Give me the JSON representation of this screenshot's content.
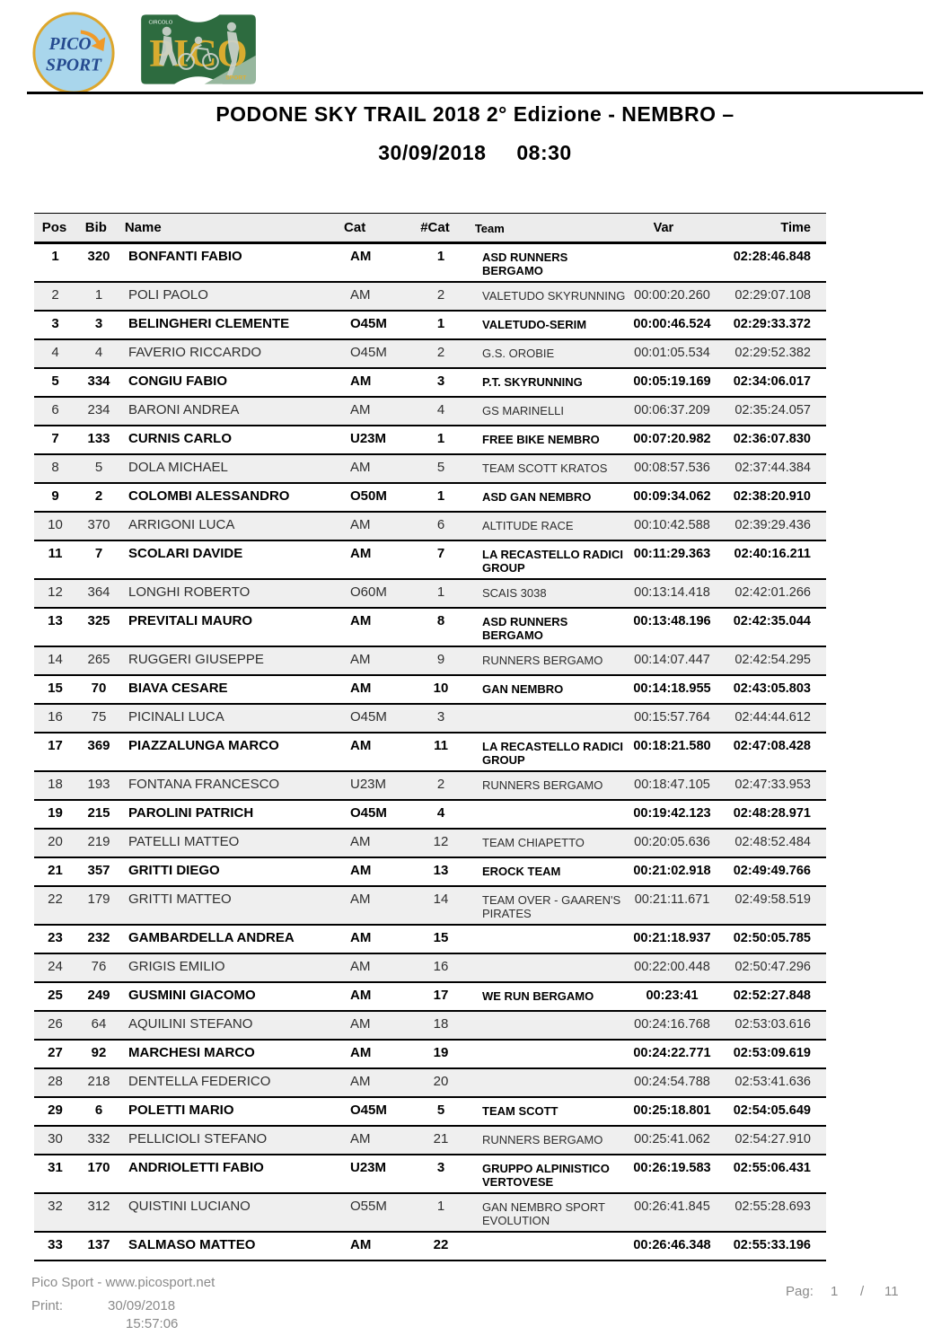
{
  "header": {
    "logo_picosport": {
      "line1": "PICO",
      "line2": "SPORT"
    },
    "logo_pico": {
      "big": "PICO",
      "small_top": "CIRCOLO",
      "small_bottom": "SPORT"
    },
    "title_line1": "PODONE SKY TRAIL 2018 2° Edizione - NEMBRO –",
    "title_date": "30/09/2018",
    "title_time": "08:30"
  },
  "table": {
    "columns": [
      "Pos",
      "Bib",
      "Name",
      "Cat",
      "#Cat",
      "Team",
      "Var",
      "Time"
    ],
    "col_keys": [
      "pos",
      "bib",
      "name",
      "cat",
      "ncat",
      "team",
      "var",
      "time"
    ],
    "rows": [
      {
        "pos": "1",
        "bib": "320",
        "name": "BONFANTI FABIO",
        "cat": "AM",
        "ncat": "1",
        "team": "ASD RUNNERS BERGAMO",
        "var": "",
        "time": "02:28:46.848"
      },
      {
        "pos": "2",
        "bib": "1",
        "name": "POLI PAOLO",
        "cat": "AM",
        "ncat": "2",
        "team": "VALETUDO SKYRUNNING",
        "var": "00:00:20.260",
        "time": "02:29:07.108"
      },
      {
        "pos": "3",
        "bib": "3",
        "name": "BELINGHERI CLEMENTE",
        "cat": "O45M",
        "ncat": "1",
        "team": "VALETUDO-SERIM",
        "var": "00:00:46.524",
        "time": "02:29:33.372"
      },
      {
        "pos": "4",
        "bib": "4",
        "name": "FAVERIO RICCARDO",
        "cat": "O45M",
        "ncat": "2",
        "team": "G.S. OROBIE",
        "var": "00:01:05.534",
        "time": "02:29:52.382"
      },
      {
        "pos": "5",
        "bib": "334",
        "name": "CONGIU FABIO",
        "cat": "AM",
        "ncat": "3",
        "team": "P.T. SKYRUNNING",
        "var": "00:05:19.169",
        "time": "02:34:06.017"
      },
      {
        "pos": "6",
        "bib": "234",
        "name": "BARONI ANDREA",
        "cat": "AM",
        "ncat": "4",
        "team": "GS MARINELLI",
        "var": "00:06:37.209",
        "time": "02:35:24.057"
      },
      {
        "pos": "7",
        "bib": "133",
        "name": "CURNIS CARLO",
        "cat": "U23M",
        "ncat": "1",
        "team": "FREE BIKE NEMBRO",
        "var": "00:07:20.982",
        "time": "02:36:07.830"
      },
      {
        "pos": "8",
        "bib": "5",
        "name": "DOLA MICHAEL",
        "cat": "AM",
        "ncat": "5",
        "team": "TEAM SCOTT KRATOS",
        "var": "00:08:57.536",
        "time": "02:37:44.384"
      },
      {
        "pos": "9",
        "bib": "2",
        "name": "COLOMBI ALESSANDRO",
        "cat": "O50M",
        "ncat": "1",
        "team": "ASD GAN NEMBRO",
        "var": "00:09:34.062",
        "time": "02:38:20.910"
      },
      {
        "pos": "10",
        "bib": "370",
        "name": "ARRIGONI LUCA",
        "cat": "AM",
        "ncat": "6",
        "team": "ALTITUDE RACE",
        "var": "00:10:42.588",
        "time": "02:39:29.436"
      },
      {
        "pos": "11",
        "bib": "7",
        "name": "SCOLARI DAVIDE",
        "cat": "AM",
        "ncat": "7",
        "team": "LA RECASTELLO RADICI GROUP",
        "var": "00:11:29.363",
        "time": "02:40:16.211"
      },
      {
        "pos": "12",
        "bib": "364",
        "name": "LONGHI ROBERTO",
        "cat": "O60M",
        "ncat": "1",
        "team": "SCAIS 3038",
        "var": "00:13:14.418",
        "time": "02:42:01.266"
      },
      {
        "pos": "13",
        "bib": "325",
        "name": "PREVITALI MAURO",
        "cat": "AM",
        "ncat": "8",
        "team": "ASD RUNNERS BERGAMO",
        "var": "00:13:48.196",
        "time": "02:42:35.044"
      },
      {
        "pos": "14",
        "bib": "265",
        "name": "RUGGERI GIUSEPPE",
        "cat": "AM",
        "ncat": "9",
        "team": "RUNNERS BERGAMO",
        "var": "00:14:07.447",
        "time": "02:42:54.295"
      },
      {
        "pos": "15",
        "bib": "70",
        "name": "BIAVA CESARE",
        "cat": "AM",
        "ncat": "10",
        "team": "GAN NEMBRO",
        "var": "00:14:18.955",
        "time": "02:43:05.803"
      },
      {
        "pos": "16",
        "bib": "75",
        "name": "PICINALI LUCA",
        "cat": "O45M",
        "ncat": "3",
        "team": "",
        "var": "00:15:57.764",
        "time": "02:44:44.612"
      },
      {
        "pos": "17",
        "bib": "369",
        "name": "PIAZZALUNGA MARCO",
        "cat": "AM",
        "ncat": "11",
        "team": "LA RECASTELLO RADICI GROUP",
        "var": "00:18:21.580",
        "time": "02:47:08.428"
      },
      {
        "pos": "18",
        "bib": "193",
        "name": "FONTANA FRANCESCO",
        "cat": "U23M",
        "ncat": "2",
        "team": "RUNNERS BERGAMO",
        "var": "00:18:47.105",
        "time": "02:47:33.953"
      },
      {
        "pos": "19",
        "bib": "215",
        "name": "PAROLINI PATRICH",
        "cat": "O45M",
        "ncat": "4",
        "team": "",
        "var": "00:19:42.123",
        "time": "02:48:28.971"
      },
      {
        "pos": "20",
        "bib": "219",
        "name": "PATELLI MATTEO",
        "cat": "AM",
        "ncat": "12",
        "team": "TEAM CHIAPETTO",
        "var": "00:20:05.636",
        "time": "02:48:52.484"
      },
      {
        "pos": "21",
        "bib": "357",
        "name": "GRITTI DIEGO",
        "cat": "AM",
        "ncat": "13",
        "team": "EROCK TEAM",
        "var": "00:21:02.918",
        "time": "02:49:49.766"
      },
      {
        "pos": "22",
        "bib": "179",
        "name": "GRITTI MATTEO",
        "cat": "AM",
        "ncat": "14",
        "team": "TEAM OVER - GAAREN'S PIRATES",
        "var": "00:21:11.671",
        "time": "02:49:58.519"
      },
      {
        "pos": "23",
        "bib": "232",
        "name": "GAMBARDELLA ANDREA",
        "cat": "AM",
        "ncat": "15",
        "team": "",
        "var": "00:21:18.937",
        "time": "02:50:05.785"
      },
      {
        "pos": "24",
        "bib": "76",
        "name": "GRIGIS EMILIO",
        "cat": "AM",
        "ncat": "16",
        "team": "",
        "var": "00:22:00.448",
        "time": "02:50:47.296"
      },
      {
        "pos": "25",
        "bib": "249",
        "name": "GUSMINI GIACOMO",
        "cat": "AM",
        "ncat": "17",
        "team": "WE RUN BERGAMO",
        "var": "00:23:41",
        "time": "02:52:27.848"
      },
      {
        "pos": "26",
        "bib": "64",
        "name": "AQUILINI STEFANO",
        "cat": "AM",
        "ncat": "18",
        "team": "",
        "var": "00:24:16.768",
        "time": "02:53:03.616"
      },
      {
        "pos": "27",
        "bib": "92",
        "name": "MARCHESI MARCO",
        "cat": "AM",
        "ncat": "19",
        "team": "",
        "var": "00:24:22.771",
        "time": "02:53:09.619"
      },
      {
        "pos": "28",
        "bib": "218",
        "name": "DENTELLA FEDERICO",
        "cat": "AM",
        "ncat": "20",
        "team": "",
        "var": "00:24:54.788",
        "time": "02:53:41.636"
      },
      {
        "pos": "29",
        "bib": "6",
        "name": "POLETTI MARIO",
        "cat": "O45M",
        "ncat": "5",
        "team": "TEAM SCOTT",
        "var": "00:25:18.801",
        "time": "02:54:05.649"
      },
      {
        "pos": "30",
        "bib": "332",
        "name": "PELLICIOLI STEFANO",
        "cat": "AM",
        "ncat": "21",
        "team": "RUNNERS BERGAMO",
        "var": "00:25:41.062",
        "time": "02:54:27.910"
      },
      {
        "pos": "31",
        "bib": "170",
        "name": "ANDRIOLETTI FABIO",
        "cat": "U23M",
        "ncat": "3",
        "team": "GRUPPO ALPINISTICO VERTOVESE",
        "var": "00:26:19.583",
        "time": "02:55:06.431"
      },
      {
        "pos": "32",
        "bib": "312",
        "name": "QUISTINI LUCIANO",
        "cat": "O55M",
        "ncat": "1",
        "team": "GAN NEMBRO SPORT EVOLUTION",
        "var": "00:26:41.845",
        "time": "02:55:28.693"
      },
      {
        "pos": "33",
        "bib": "137",
        "name": "SALMASO MATTEO",
        "cat": "AM",
        "ncat": "22",
        "team": "",
        "var": "00:26:46.348",
        "time": "02:55:33.196"
      }
    ]
  },
  "footer": {
    "company": "Pico Sport - www.picosport.net",
    "print_label": "Print:",
    "print_date": "30/09/2018",
    "print_time": "15:57:06",
    "page_label": "Pag:",
    "page_current": "1",
    "page_sep": "/",
    "page_total": "11"
  },
  "colors": {
    "logo_circle_fill": "#a9d6ec",
    "logo_circle_ring": "#dda62c",
    "logo_circle_text": "#254a8f",
    "logo_arrow": "#f09a28",
    "logo_green_bg": "#2d6b3f",
    "logo_green_gold": "#e2b02f",
    "row_alt_bg": "#efefef"
  }
}
